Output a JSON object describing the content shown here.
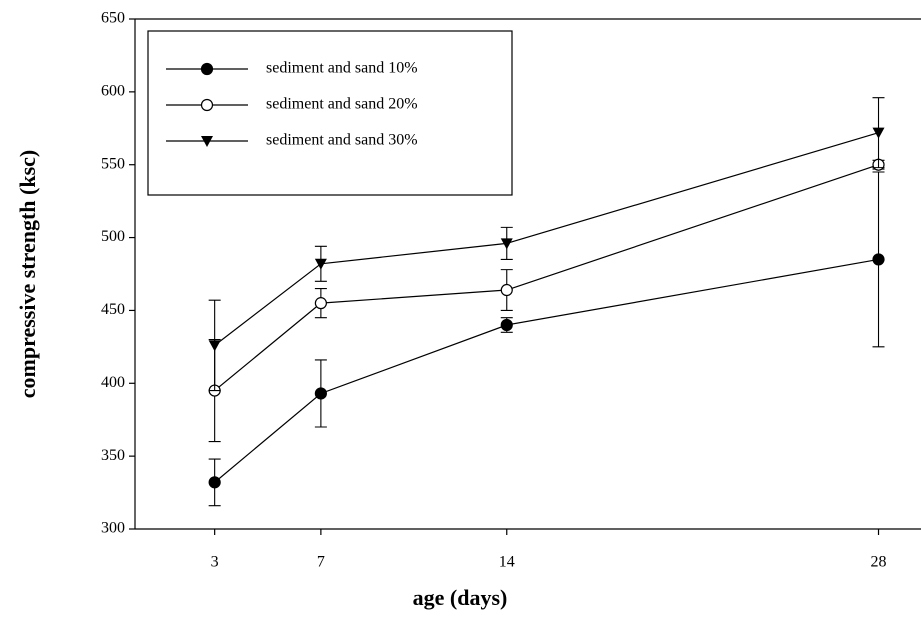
{
  "chart_data": {
    "type": "line",
    "x_label": "age (days)",
    "y_label": "compressive strength (ksc)",
    "xlim": [
      0,
      29.6
    ],
    "ylim": [
      300,
      650
    ],
    "xticks": [
      3,
      7,
      14,
      28
    ],
    "yticks": [
      300,
      350,
      400,
      450,
      500,
      550,
      600,
      650
    ],
    "grid": false,
    "legend": "upper left",
    "series": [
      {
        "name": "sediment and sand 10%",
        "color": "#000000",
        "marker": "filled-circle",
        "x": [
          3,
          7,
          14,
          28
        ],
        "values": [
          332,
          393,
          440,
          485
        ],
        "errors": [
          16,
          23,
          5,
          60
        ]
      },
      {
        "name": "sediment and sand 20%",
        "color": "#000000",
        "marker": "open-circle",
        "x": [
          3,
          7,
          14,
          28
        ],
        "values": [
          395,
          455,
          464,
          550
        ],
        "errors": [
          35,
          10,
          14,
          3
        ]
      },
      {
        "name": "sediment and sand 30%",
        "color": "#000000",
        "marker": "triangle-down",
        "x": [
          3,
          7,
          14,
          28
        ],
        "values": [
          426,
          482,
          496,
          572
        ],
        "errors": [
          31,
          12,
          11,
          24
        ]
      }
    ]
  }
}
